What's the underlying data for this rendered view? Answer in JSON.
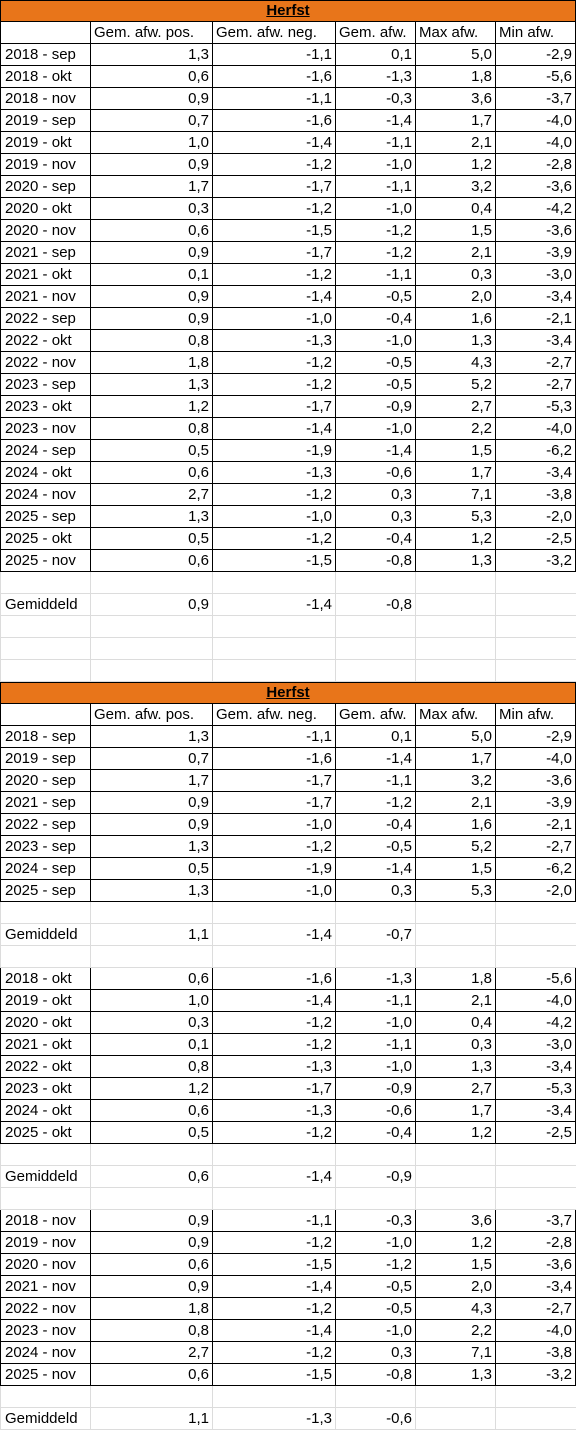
{
  "columns": [
    "",
    "Gem. afw. pos.",
    "Gem. afw. neg.",
    "Gem. afw.",
    "Max afw.",
    "Min afw."
  ],
  "avg_label": "Gemiddeld",
  "sections": [
    {
      "title": "Herfst",
      "groups": [
        {
          "rows": [
            [
              "2018 - sep",
              "1,3",
              "-1,1",
              "0,1",
              "5,0",
              "-2,9"
            ],
            [
              "2018 - okt",
              "0,6",
              "-1,6",
              "-1,3",
              "1,8",
              "-5,6"
            ],
            [
              "2018 - nov",
              "0,9",
              "-1,1",
              "-0,3",
              "3,6",
              "-3,7"
            ],
            [
              "2019 - sep",
              "0,7",
              "-1,6",
              "-1,4",
              "1,7",
              "-4,0"
            ],
            [
              "2019 - okt",
              "1,0",
              "-1,4",
              "-1,1",
              "2,1",
              "-4,0"
            ],
            [
              "2019 - nov",
              "0,9",
              "-1,2",
              "-1,0",
              "1,2",
              "-2,8"
            ],
            [
              "2020 - sep",
              "1,7",
              "-1,7",
              "-1,1",
              "3,2",
              "-3,6"
            ],
            [
              "2020 - okt",
              "0,3",
              "-1,2",
              "-1,0",
              "0,4",
              "-4,2"
            ],
            [
              "2020 - nov",
              "0,6",
              "-1,5",
              "-1,2",
              "1,5",
              "-3,6"
            ],
            [
              "2021 - sep",
              "0,9",
              "-1,7",
              "-1,2",
              "2,1",
              "-3,9"
            ],
            [
              "2021 - okt",
              "0,1",
              "-1,2",
              "-1,1",
              "0,3",
              "-3,0"
            ],
            [
              "2021 - nov",
              "0,9",
              "-1,4",
              "-0,5",
              "2,0",
              "-3,4"
            ],
            [
              "2022 - sep",
              "0,9",
              "-1,0",
              "-0,4",
              "1,6",
              "-2,1"
            ],
            [
              "2022 - okt",
              "0,8",
              "-1,3",
              "-1,0",
              "1,3",
              "-3,4"
            ],
            [
              "2022 - nov",
              "1,8",
              "-1,2",
              "-0,5",
              "4,3",
              "-2,7"
            ],
            [
              "2023 - sep",
              "1,3",
              "-1,2",
              "-0,5",
              "5,2",
              "-2,7"
            ],
            [
              "2023 - okt",
              "1,2",
              "-1,7",
              "-0,9",
              "2,7",
              "-5,3"
            ],
            [
              "2023 - nov",
              "0,8",
              "-1,4",
              "-1,0",
              "2,2",
              "-4,0"
            ],
            [
              "2024 - sep",
              "0,5",
              "-1,9",
              "-1,4",
              "1,5",
              "-6,2"
            ],
            [
              "2024 - okt",
              "0,6",
              "-1,3",
              "-0,6",
              "1,7",
              "-3,4"
            ],
            [
              "2024 - nov",
              "2,7",
              "-1,2",
              "0,3",
              "7,1",
              "-3,8"
            ],
            [
              "2025 - sep",
              "1,3",
              "-1,0",
              "0,3",
              "5,3",
              "-2,0"
            ],
            [
              "2025 - okt",
              "0,5",
              "-1,2",
              "-0,4",
              "1,2",
              "-2,5"
            ],
            [
              "2025 - nov",
              "0,6",
              "-1,5",
              "-0,8",
              "1,3",
              "-3,2"
            ]
          ],
          "avg": [
            "0,9",
            "-1,4",
            "-0,8"
          ]
        }
      ]
    },
    {
      "title": "Herfst",
      "groups": [
        {
          "rows": [
            [
              "2018 - sep",
              "1,3",
              "-1,1",
              "0,1",
              "5,0",
              "-2,9"
            ],
            [
              "2019 - sep",
              "0,7",
              "-1,6",
              "-1,4",
              "1,7",
              "-4,0"
            ],
            [
              "2020 - sep",
              "1,7",
              "-1,7",
              "-1,1",
              "3,2",
              "-3,6"
            ],
            [
              "2021 - sep",
              "0,9",
              "-1,7",
              "-1,2",
              "2,1",
              "-3,9"
            ],
            [
              "2022 - sep",
              "0,9",
              "-1,0",
              "-0,4",
              "1,6",
              "-2,1"
            ],
            [
              "2023 - sep",
              "1,3",
              "-1,2",
              "-0,5",
              "5,2",
              "-2,7"
            ],
            [
              "2024 - sep",
              "0,5",
              "-1,9",
              "-1,4",
              "1,5",
              "-6,2"
            ],
            [
              "2025 - sep",
              "1,3",
              "-1,0",
              "0,3",
              "5,3",
              "-2,0"
            ]
          ],
          "avg": [
            "1,1",
            "-1,4",
            "-0,7"
          ]
        },
        {
          "rows": [
            [
              "2018 - okt",
              "0,6",
              "-1,6",
              "-1,3",
              "1,8",
              "-5,6"
            ],
            [
              "2019 - okt",
              "1,0",
              "-1,4",
              "-1,1",
              "2,1",
              "-4,0"
            ],
            [
              "2020 - okt",
              "0,3",
              "-1,2",
              "-1,0",
              "0,4",
              "-4,2"
            ],
            [
              "2021 - okt",
              "0,1",
              "-1,2",
              "-1,1",
              "0,3",
              "-3,0"
            ],
            [
              "2022 - okt",
              "0,8",
              "-1,3",
              "-1,0",
              "1,3",
              "-3,4"
            ],
            [
              "2023 - okt",
              "1,2",
              "-1,7",
              "-0,9",
              "2,7",
              "-5,3"
            ],
            [
              "2024 - okt",
              "0,6",
              "-1,3",
              "-0,6",
              "1,7",
              "-3,4"
            ],
            [
              "2025 - okt",
              "0,5",
              "-1,2",
              "-0,4",
              "1,2",
              "-2,5"
            ]
          ],
          "avg": [
            "0,6",
            "-1,4",
            "-0,9"
          ]
        },
        {
          "rows": [
            [
              "2018 - nov",
              "0,9",
              "-1,1",
              "-0,3",
              "3,6",
              "-3,7"
            ],
            [
              "2019 - nov",
              "0,9",
              "-1,2",
              "-1,0",
              "1,2",
              "-2,8"
            ],
            [
              "2020 - nov",
              "0,6",
              "-1,5",
              "-1,2",
              "1,5",
              "-3,6"
            ],
            [
              "2021 - nov",
              "0,9",
              "-1,4",
              "-0,5",
              "2,0",
              "-3,4"
            ],
            [
              "2022 - nov",
              "1,8",
              "-1,2",
              "-0,5",
              "4,3",
              "-2,7"
            ],
            [
              "2023 - nov",
              "0,8",
              "-1,4",
              "-1,0",
              "2,2",
              "-4,0"
            ],
            [
              "2024 - nov",
              "2,7",
              "-1,2",
              "0,3",
              "7,1",
              "-3,8"
            ],
            [
              "2025 - nov",
              "0,6",
              "-1,5",
              "-0,8",
              "1,3",
              "-3,2"
            ]
          ],
          "avg": [
            "1,1",
            "-1,3",
            "-0,6"
          ]
        }
      ]
    }
  ]
}
